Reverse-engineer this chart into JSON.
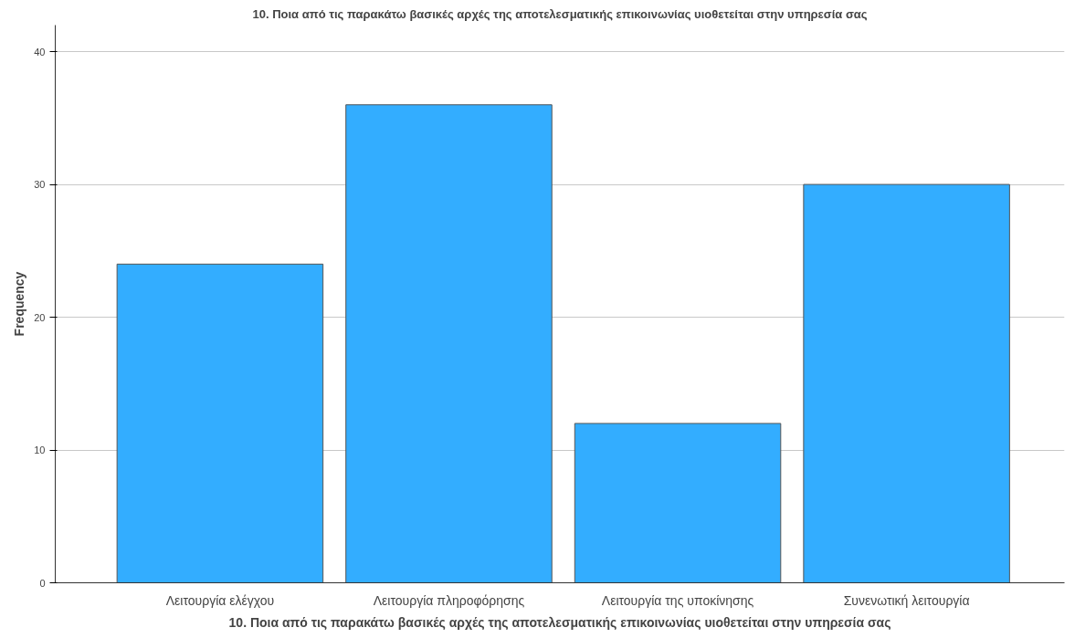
{
  "chart_data": {
    "type": "bar",
    "title": "10. Ποια από τις παρακάτω βασικές αρχές της αποτελεσματικής επικοινωνίας υιοθετείται στην υπηρεσία σας",
    "xlabel": "10. Ποια από τις παρακάτω βασικές αρχές της αποτελεσματικής επικοινωνίας υιοθετείται στην υπηρεσία σας",
    "ylabel": "Frequency",
    "categories": [
      "Λειτουργία ελέγχου",
      "Λειτουργία πληροφόρησης",
      "Λειτουργία της υποκίνησης",
      "Συνενωτική λειτουργία"
    ],
    "values": [
      24,
      36,
      12,
      30
    ],
    "color": "#33adff",
    "ylim": [
      0,
      42
    ],
    "yticks": [
      0,
      10,
      20,
      30,
      40
    ],
    "grid": "y"
  }
}
